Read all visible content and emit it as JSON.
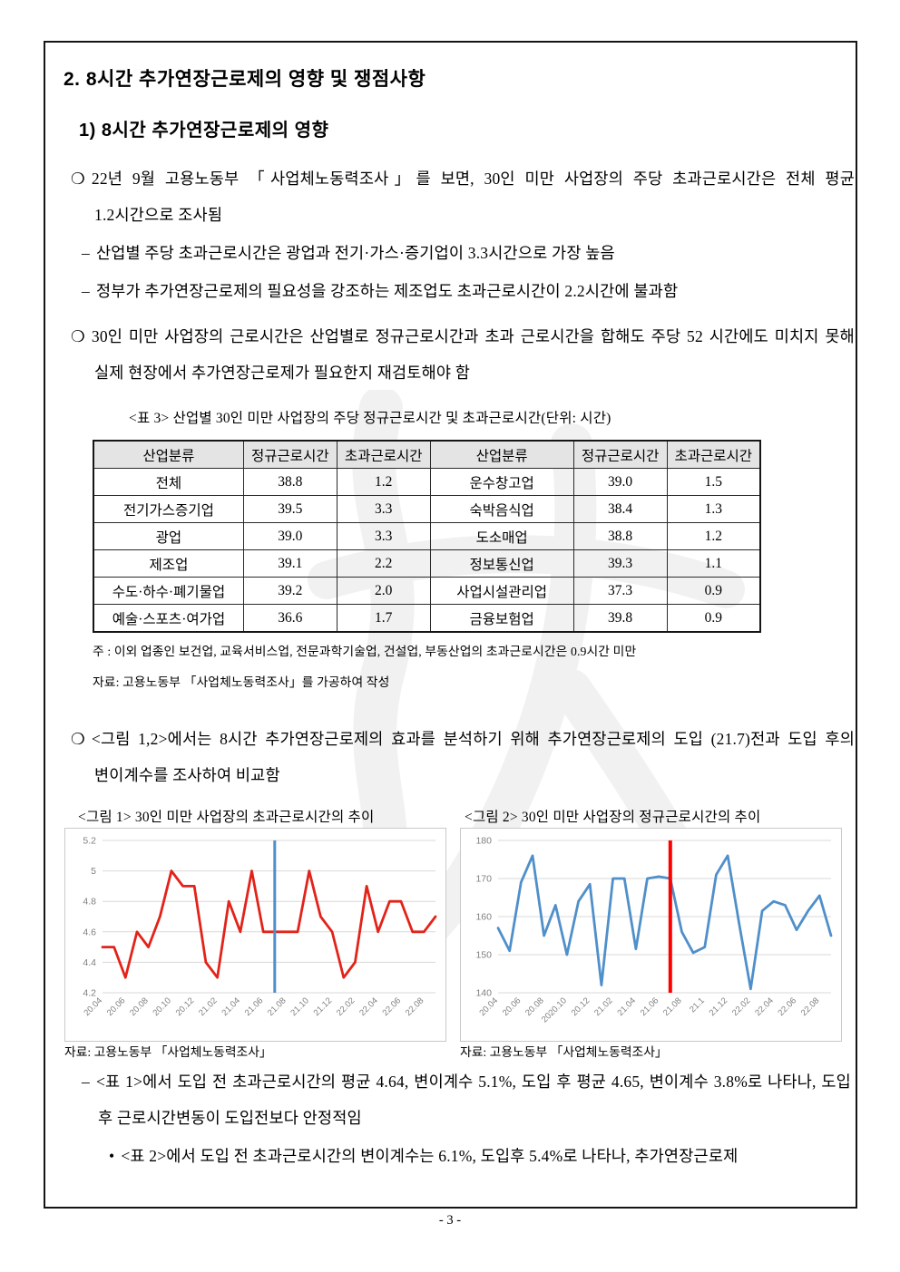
{
  "heading": "2. 8시간 추가연장근로제의 영향 및 쟁점사항",
  "subheading": "1) 8시간 추가연장근로제의 영향",
  "bullets": {
    "b1": {
      "marker": "❍",
      "text": "22년 9월 고용노동부 「사업체노동력조사」를 보면, 30인 미만 사업장의 주당 초과근로시간은 전체 평균 1.2시간으로 조사됨"
    },
    "d1": {
      "marker": "–",
      "text": "산업별 주당 초과근로시간은 광업과 전기·가스·증기업이 3.3시간으로 가장 높음"
    },
    "d2": {
      "marker": "–",
      "text": "정부가 추가연장근로제의 필요성을 강조하는 제조업도 초과근로시간이 2.2시간에 불과함"
    },
    "b2": {
      "marker": "❍",
      "text": "30인 미만 사업장의 근로시간은 산업별로 정규근로시간과 초과 근로시간을 합해도 주당 52 시간에도 미치지 못해 실제 현장에서 추가연장근로제가 필요한지 재검토해야 함"
    },
    "b3": {
      "marker": "❍",
      "text": "<그림 1,2>에서는 8시간 추가연장근로제의 효과를 분석하기 위해 추가연장근로제의 도입 (21.7)전과 도입 후의 변이계수를 조사하여 비교함"
    },
    "d3": {
      "marker": "–",
      "text": "<표 1>에서 도입 전 초과근로시간의 평균 4.64, 변이계수 5.1%, 도입 후 평균 4.65, 변이계수 3.8%로 나타나, 도입 후 근로시간변동이 도입전보다 안정적임"
    },
    "b4": {
      "marker": "•",
      "text": "<표 2>에서 도입 전 초과근로시간의 변이계수는 6.1%, 도입후 5.4%로 나타나, 추가연장근로제"
    }
  },
  "table": {
    "caption": "<표 3> 산업별 30인 미만 사업장의 주당 정규근로시간 및 초과근로시간(단위: 시간)",
    "headers": [
      "산업분류",
      "정규근로시간",
      "초과근로시간",
      "산업분류",
      "정규근로시간",
      "초과근로시간"
    ],
    "rows": [
      [
        "전체",
        "38.8",
        "1.2",
        "운수창고업",
        "39.0",
        "1.5"
      ],
      [
        "전기가스증기업",
        "39.5",
        "3.3",
        "숙박음식업",
        "38.4",
        "1.3"
      ],
      [
        "광업",
        "39.0",
        "3.3",
        "도소매업",
        "38.8",
        "1.2"
      ],
      [
        "제조업",
        "39.1",
        "2.2",
        "정보통신업",
        "39.3",
        "1.1"
      ],
      [
        "수도·하수·폐기물업",
        "39.2",
        "2.0",
        "사업시설관리업",
        "37.3",
        "0.9"
      ],
      [
        "예술·스포츠·여가업",
        "36.6",
        "1.7",
        "금융보험업",
        "39.8",
        "0.9"
      ]
    ],
    "note": "주 : 이외 업종인 보건업, 교육서비스업, 전문과학기술업, 건설업, 부동산업의 초과근로시간은 0.9시간 미만",
    "source": "자료: 고용노동부 「사업체노동력조사」를 가공하여 작성"
  },
  "chart_data": [
    {
      "type": "line",
      "title": "<그림 1> 30인 미만 사업장의 초과근로시간의 추이",
      "x": [
        "20.04",
        "20.05",
        "20.06",
        "20.07",
        "20.08",
        "20.09",
        "20.10",
        "20.11",
        "20.12",
        "21.01",
        "21.02",
        "21.03",
        "21.04",
        "21.05",
        "21.06",
        "21.07",
        "21.08",
        "21.09",
        "21.10",
        "21.11",
        "21.12",
        "22.01",
        "22.02",
        "22.03",
        "22.04",
        "22.05",
        "22.06",
        "22.07",
        "22.08",
        "22.09"
      ],
      "values": [
        4.5,
        4.5,
        4.3,
        4.6,
        4.5,
        4.7,
        5.0,
        4.9,
        4.9,
        4.4,
        4.3,
        4.8,
        4.6,
        5.0,
        4.6,
        4.6,
        4.6,
        4.6,
        5.0,
        4.7,
        4.6,
        4.3,
        4.4,
        4.9,
        4.6,
        4.8,
        4.8,
        4.6,
        4.6,
        4.7
      ],
      "ylim": [
        4.2,
        5.2
      ],
      "yticks": [
        4.2,
        4.4,
        4.6,
        4.8,
        5,
        5.2
      ],
      "xtick_labels": [
        "20.04",
        "20.06",
        "20.08",
        "20.10",
        "20.12",
        "21.02",
        "21.04",
        "21.06",
        "21.08",
        "21.10",
        "21.12",
        "22.02",
        "22.04",
        "22.06",
        "22.08"
      ],
      "line_color": "#e2231a",
      "vline": {
        "index": 15,
        "color": "#4f8fca",
        "width": 3
      },
      "grid": true,
      "legend": "none",
      "source": "자료: 고용노동부 「사업체노동력조사」"
    },
    {
      "type": "line",
      "title": "<그림 2> 30인 미만 사업장의 정규근로시간의 추이",
      "x": [
        "20.04",
        "20.05",
        "20.06",
        "20.07",
        "20.08",
        "20.09",
        "20.10",
        "20.11",
        "20.12",
        "21.01",
        "21.02",
        "21.03",
        "21.04",
        "21.05",
        "21.06",
        "21.07",
        "21.08",
        "21.09",
        "21.10",
        "21.11",
        "21.12",
        "22.01",
        "22.02",
        "22.03",
        "22.04",
        "22.05",
        "22.06",
        "22.07",
        "22.08",
        "22.09"
      ],
      "values": [
        157,
        151,
        169,
        176,
        155,
        163,
        150,
        164,
        168.5,
        142,
        170,
        170,
        151.5,
        170,
        170.5,
        170,
        156,
        150.5,
        152,
        171,
        176,
        158,
        141,
        161.5,
        164,
        163,
        156.5,
        161.5,
        165.5,
        155
      ],
      "ylim": [
        140,
        180
      ],
      "yticks": [
        140,
        150,
        160,
        170,
        180
      ],
      "xtick_labels": [
        "20.04",
        "20.06",
        "20.08",
        "2020.10",
        "20.12",
        "21.02",
        "21.04",
        "21.06",
        "21.08",
        "21.1",
        "21.12",
        "22.02",
        "22.04",
        "22.06",
        "22.08"
      ],
      "line_color": "#4f8fca",
      "vline": {
        "index": 15,
        "color": "#ff0000",
        "width": 4
      },
      "grid": true,
      "legend": "none",
      "source": "자료: 고용노동부 「사업체노동력조사」"
    }
  ],
  "footer": "- 3 -"
}
